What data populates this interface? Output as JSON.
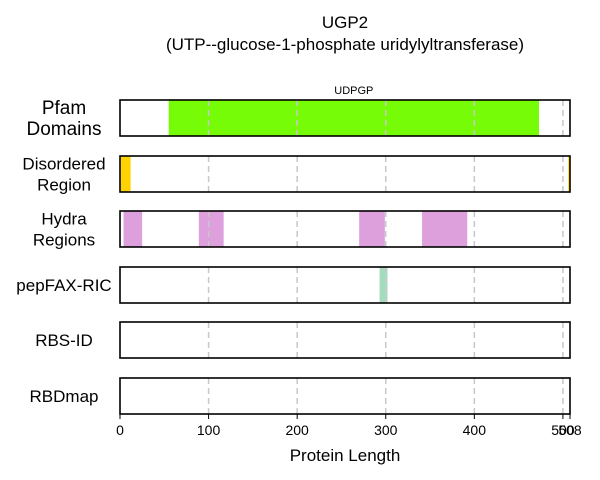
{
  "chart_data": {
    "type": "bar",
    "title": "UGP2",
    "subtitle": "(UTP--glucose-1-phosphate uridylyltransferase)",
    "xlabel": "Protein Length",
    "protein_length": 508,
    "xlim": [
      0,
      508
    ],
    "x_ticks": [
      0,
      100,
      200,
      300,
      400,
      500,
      508
    ],
    "x_tick_labels": [
      "0",
      "100",
      "200",
      "300",
      "400",
      "500",
      "508"
    ],
    "gridlines": [
      100,
      200,
      300,
      400,
      500
    ],
    "grid": true,
    "tracks": [
      {
        "label": "Pfam\nDomains",
        "segments": [
          {
            "start": 55,
            "end": 473,
            "color": "#77fc07",
            "label": "UDPGP"
          }
        ]
      },
      {
        "label": "Disordered\nRegion",
        "segments": [
          {
            "start": 1,
            "end": 12,
            "color": "#ffd300",
            "label": ""
          },
          {
            "start": 506,
            "end": 508,
            "color": "#ffd300",
            "label": ""
          }
        ]
      },
      {
        "label": "Hydra\nRegions",
        "segments": [
          {
            "start": 4,
            "end": 25,
            "color": "#dda0dd",
            "label": ""
          },
          {
            "start": 89,
            "end": 117,
            "color": "#dda0dd",
            "label": ""
          },
          {
            "start": 270,
            "end": 299,
            "color": "#dda0dd",
            "label": ""
          },
          {
            "start": 341,
            "end": 392,
            "color": "#dda0dd",
            "label": ""
          }
        ]
      },
      {
        "label": "pepFAX-RIC",
        "segments": [
          {
            "start": 293,
            "end": 302,
            "color": "#a5dcbe",
            "label": ""
          }
        ]
      },
      {
        "label": "RBS-ID",
        "segments": []
      },
      {
        "label": "RBDmap",
        "segments": []
      }
    ]
  }
}
